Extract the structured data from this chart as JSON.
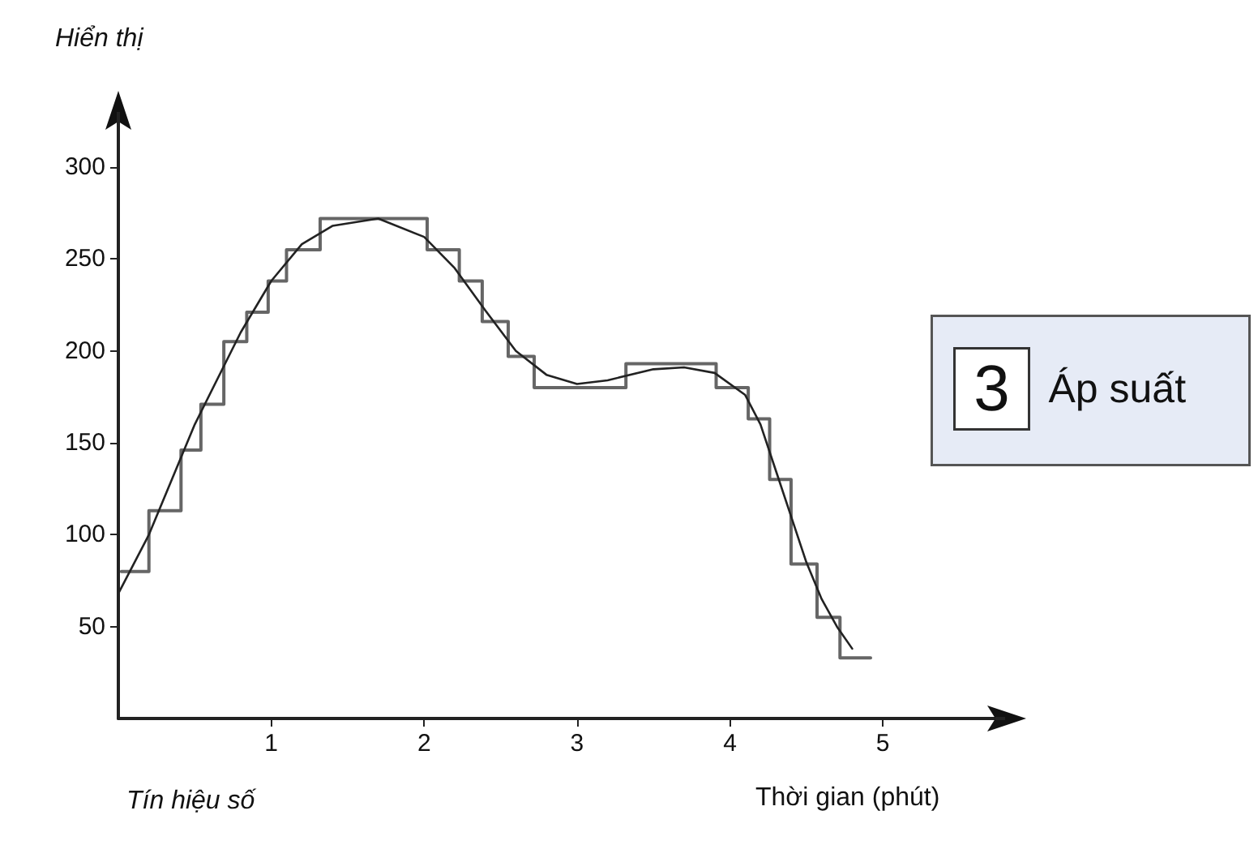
{
  "chart_data": {
    "type": "line",
    "ylabel": "Hiển thị",
    "xlabel": "Thời gian (phút)",
    "annotations": [
      "Tín hiệu số",
      "3",
      "Áp suất"
    ],
    "xlim": [
      0,
      5.8
    ],
    "ylim": [
      0,
      330
    ],
    "xticks": [
      1,
      2,
      3,
      4,
      5
    ],
    "yticks": [
      50,
      100,
      150,
      200,
      250,
      300
    ],
    "grid": false,
    "marker": "none",
    "line_style": "solid",
    "series": [
      {
        "type": "step",
        "color": "#666666",
        "x": [
          0.02,
          0.2,
          0.41,
          0.54,
          0.69,
          0.84,
          0.98,
          1.1,
          1.32,
          2.02,
          2.23,
          2.38,
          2.55,
          2.72,
          3.32,
          3.91,
          4.12,
          4.26,
          4.4,
          4.57,
          4.72,
          4.92
        ],
        "values": [
          80,
          113,
          146,
          171,
          205,
          221,
          238,
          255,
          272,
          255,
          238,
          216,
          197,
          180,
          193,
          180,
          163,
          130,
          84,
          55,
          33,
          33
        ]
      },
      {
        "color": "#222222",
        "x": [
          0,
          0.2,
          0.5,
          0.8,
          1.0,
          1.2,
          1.4,
          1.7,
          2.0,
          2.2,
          2.4,
          2.6,
          2.8,
          3.0,
          3.2,
          3.5,
          3.7,
          3.9,
          4.1,
          4.2,
          4.3,
          4.4,
          4.5,
          4.6,
          4.7,
          4.8
        ],
        "values": [
          68,
          100,
          160,
          210,
          238,
          258,
          268,
          272,
          262,
          245,
          222,
          200,
          187,
          182,
          184,
          190,
          191,
          188,
          176,
          160,
          135,
          110,
          85,
          65,
          50,
          38
        ]
      }
    ]
  }
}
